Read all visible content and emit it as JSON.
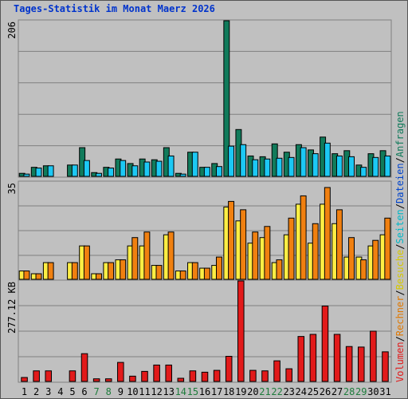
{
  "title": "Tages-Statistik im Monat Maerz 2026",
  "colors": {
    "anfragen": "#117b5b",
    "dateien": "#1cc8f4",
    "seiten": "#00bcd4",
    "besuche": "#ffee44",
    "rechner": "#f08010",
    "volumen": "#e21a1a",
    "weekday": "#000000",
    "weekend": "#1e7c3c",
    "separator": "#000000"
  },
  "legend": {
    "top": [
      {
        "text": "Anfragen",
        "color": "#117b5b"
      },
      {
        "text": "/",
        "color": "#000000"
      },
      {
        "text": "Dateien",
        "color": "#0044cc"
      },
      {
        "text": "/",
        "color": "#000000"
      },
      {
        "text": "Seiten",
        "color": "#00b8c8"
      },
      {
        "text": "/",
        "color": "#000000"
      },
      {
        "text": "Besuche",
        "color": "#d6c800"
      },
      {
        "text": "/",
        "color": "#000000"
      },
      {
        "text": "Rechner",
        "color": "#e07800"
      },
      {
        "text": "/",
        "color": "#000000"
      },
      {
        "text": "Volumen",
        "color": "#e21a1a"
      }
    ]
  },
  "chart_data": [
    {
      "type": "bar",
      "panel": "top",
      "ylabel": "206",
      "ymax": 206,
      "categories": [
        "1",
        "2",
        "3",
        "4",
        "5",
        "6",
        "7",
        "8",
        "9",
        "10",
        "11",
        "12",
        "13",
        "14",
        "15",
        "16",
        "17",
        "18",
        "19",
        "20",
        "21",
        "22",
        "23",
        "24",
        "25",
        "26",
        "27",
        "28",
        "29",
        "30",
        "31"
      ],
      "series": [
        {
          "name": "Anfragen",
          "values": [
            4,
            12,
            14,
            0,
            15,
            38,
            5,
            12,
            23,
            17,
            23,
            22,
            38,
            4,
            32,
            12,
            17,
            206,
            62,
            27,
            26,
            43,
            32,
            42,
            35,
            52,
            30,
            34,
            15,
            30,
            34
          ]
        },
        {
          "name": "Dateien",
          "values": [
            3,
            11,
            14,
            0,
            15,
            21,
            4,
            11,
            21,
            14,
            19,
            20,
            27,
            3,
            32,
            12,
            13,
            40,
            42,
            22,
            23,
            24,
            25,
            38,
            30,
            44,
            27,
            26,
            12,
            25,
            27
          ]
        }
      ]
    },
    {
      "type": "bar",
      "panel": "middle",
      "ylabel": "35",
      "ymax": 35,
      "categories": [
        "1",
        "2",
        "3",
        "4",
        "5",
        "6",
        "7",
        "8",
        "9",
        "10",
        "11",
        "12",
        "13",
        "14",
        "15",
        "16",
        "17",
        "18",
        "19",
        "20",
        "21",
        "22",
        "23",
        "24",
        "25",
        "26",
        "27",
        "28",
        "29",
        "30",
        "31"
      ],
      "series": [
        {
          "name": "Besuche",
          "values": [
            3,
            2,
            6,
            0,
            6,
            12,
            2,
            6,
            7,
            12,
            12,
            5,
            16,
            3,
            6,
            4,
            5,
            26,
            21,
            13,
            15,
            6,
            16,
            27,
            13,
            27,
            20,
            8,
            8,
            12,
            16
          ]
        },
        {
          "name": "Rechner",
          "values": [
            3,
            2,
            6,
            0,
            6,
            12,
            2,
            6,
            7,
            15,
            17,
            5,
            17,
            3,
            6,
            4,
            8,
            28,
            25,
            17,
            19,
            7,
            22,
            30,
            20,
            33,
            25,
            15,
            7,
            14,
            22
          ]
        }
      ]
    },
    {
      "type": "bar",
      "panel": "bottom",
      "ylabel": "277.12 KB",
      "ymax": 380,
      "categories": [
        "1",
        "2",
        "3",
        "4",
        "5",
        "6",
        "7",
        "8",
        "9",
        "10",
        "11",
        "12",
        "13",
        "14",
        "15",
        "16",
        "17",
        "18",
        "19",
        "20",
        "21",
        "22",
        "23",
        "24",
        "25",
        "26",
        "27",
        "28",
        "29",
        "30",
        "31"
      ],
      "series": [
        {
          "name": "Volumen",
          "values": [
            15,
            40,
            40,
            0,
            40,
            105,
            10,
            10,
            72,
            20,
            38,
            62,
            62,
            12,
            40,
            35,
            42,
            95,
            380,
            42,
            40,
            78,
            48,
            170,
            178,
            285,
            178,
            132,
            130,
            190,
            112
          ]
        }
      ]
    }
  ],
  "days": [
    {
      "label": "1",
      "weekend": false
    },
    {
      "label": "2",
      "weekend": false
    },
    {
      "label": "3",
      "weekend": false
    },
    {
      "label": "4",
      "weekend": false
    },
    {
      "label": "5",
      "weekend": false
    },
    {
      "label": "6",
      "weekend": false
    },
    {
      "label": "7",
      "weekend": true
    },
    {
      "label": "8",
      "weekend": true
    },
    {
      "label": "9",
      "weekend": false
    },
    {
      "label": "10",
      "weekend": false
    },
    {
      "label": "11",
      "weekend": false
    },
    {
      "label": "12",
      "weekend": false
    },
    {
      "label": "13",
      "weekend": false
    },
    {
      "label": "14",
      "weekend": true
    },
    {
      "label": "15",
      "weekend": true
    },
    {
      "label": "16",
      "weekend": false
    },
    {
      "label": "17",
      "weekend": false
    },
    {
      "label": "18",
      "weekend": false
    },
    {
      "label": "19",
      "weekend": false
    },
    {
      "label": "20",
      "weekend": false
    },
    {
      "label": "21",
      "weekend": true
    },
    {
      "label": "22",
      "weekend": true
    },
    {
      "label": "23",
      "weekend": false
    },
    {
      "label": "24",
      "weekend": false
    },
    {
      "label": "25",
      "weekend": false
    },
    {
      "label": "26",
      "weekend": false
    },
    {
      "label": "27",
      "weekend": false
    },
    {
      "label": "28",
      "weekend": true
    },
    {
      "label": "29",
      "weekend": true
    },
    {
      "label": "30",
      "weekend": false
    },
    {
      "label": "31",
      "weekend": false
    }
  ]
}
